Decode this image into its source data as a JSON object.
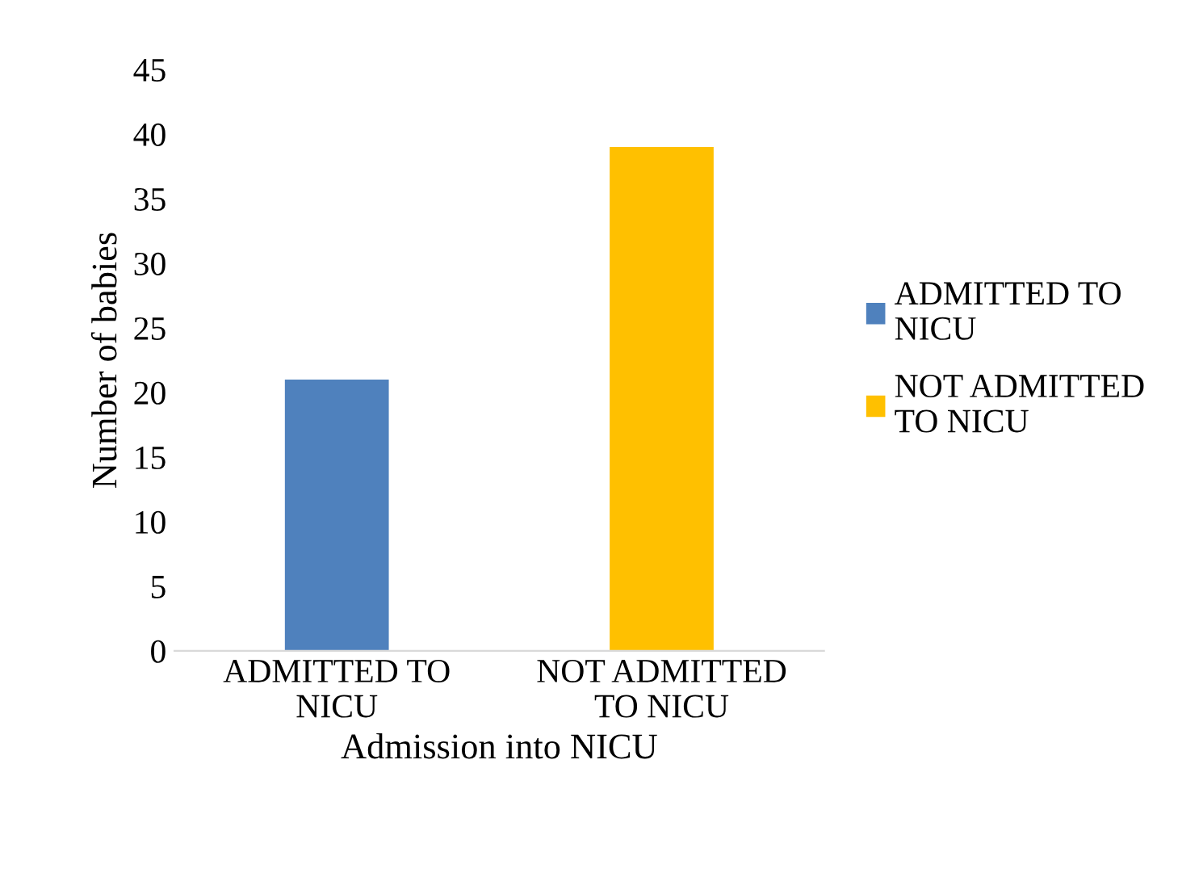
{
  "chart_data": {
    "type": "bar",
    "xlabel": "Admission into NICU",
    "ylabel": "Number of babies",
    "categories": [
      "ADMITTED TO NICU",
      "NOT ADMITTED TO NICU"
    ],
    "series": [
      {
        "name": "ADMITTED TO NICU",
        "color": "#4f81bd",
        "values": [
          21,
          null
        ]
      },
      {
        "name": "NOT ADMITTED TO NICU",
        "color": "#ffc000",
        "values": [
          null,
          39
        ]
      }
    ],
    "ylim": [
      0,
      45
    ],
    "yticks": [
      0,
      5,
      10,
      15,
      20,
      25,
      30,
      35,
      40,
      45
    ],
    "grid": false,
    "legend": "right"
  }
}
